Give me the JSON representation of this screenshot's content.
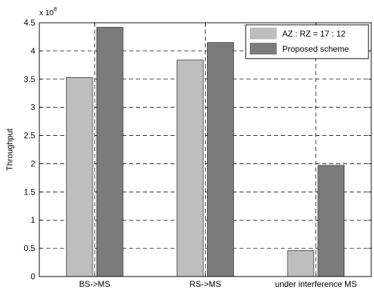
{
  "chart_data": {
    "type": "bar",
    "title": "",
    "xlabel": "",
    "ylabel": "Throughput",
    "y_multiplier": "x 10",
    "y_exponent": "8",
    "categories": [
      "BS->MS",
      "RS->MS",
      "under interference MS"
    ],
    "series": [
      {
        "name": "AZ : RZ = 17 : 12",
        "values": [
          3.53,
          3.84,
          0.46
        ],
        "color": "#bebebe"
      },
      {
        "name": "Proposed scheme",
        "values": [
          4.42,
          4.15,
          1.97
        ],
        "color": "#7b7b7b"
      }
    ],
    "ylim": [
      0,
      4.5
    ],
    "yticks": [
      0,
      0.5,
      1,
      1.5,
      2,
      2.5,
      3,
      3.5,
      4,
      4.5
    ],
    "ytick_labels": [
      "0",
      "0.5",
      "1",
      "1.5",
      "2",
      "2.5",
      "3",
      "3.5",
      "4",
      "4.5"
    ],
    "grid": true,
    "legend_position": "top-right"
  }
}
